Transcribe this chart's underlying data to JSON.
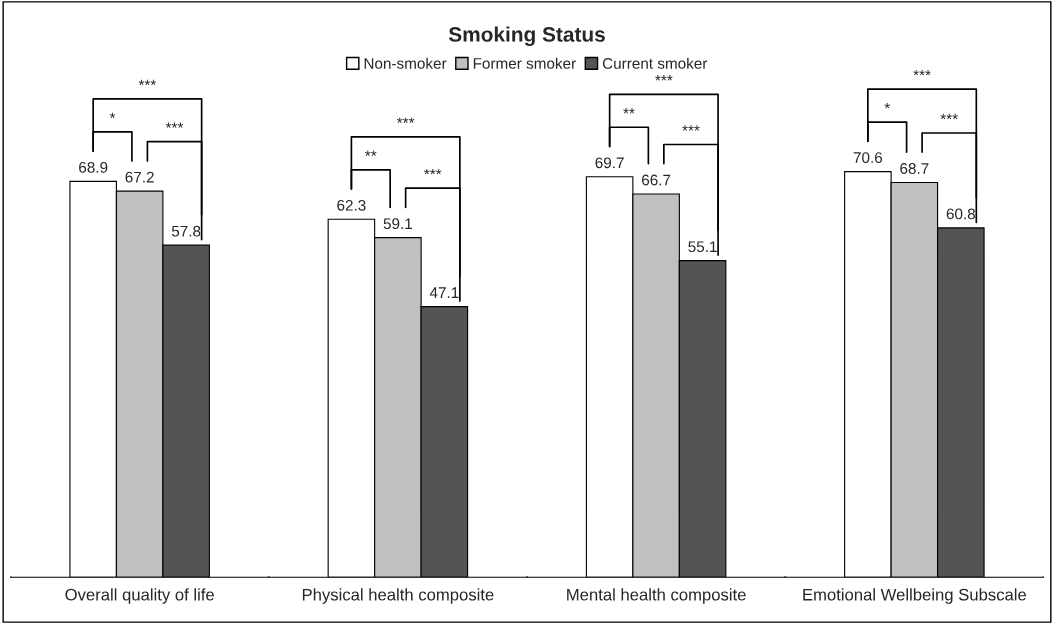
{
  "chart_data": {
    "type": "bar",
    "title": "Smoking Status",
    "categories": [
      "Overall quality of life",
      "Physical health composite",
      "Mental health composite",
      "Emotional Wellbeing Subscale"
    ],
    "series": [
      {
        "name": "Non-smoker",
        "color": "#ffffff",
        "values": [
          68.9,
          62.3,
          69.7,
          70.6
        ]
      },
      {
        "name": "Former smoker",
        "color": "#c0c0c0",
        "values": [
          67.2,
          59.1,
          66.7,
          68.7
        ]
      },
      {
        "name": "Current smoker",
        "color": "#545454",
        "values": [
          57.8,
          47.1,
          55.1,
          60.8
        ]
      }
    ],
    "data_labels": true,
    "legend": "top",
    "grid": false,
    "annotations": [
      "***",
      "*",
      "***",
      "***",
      "**",
      "***",
      "***",
      "**",
      "***",
      "***",
      "*",
      "***"
    ]
  }
}
